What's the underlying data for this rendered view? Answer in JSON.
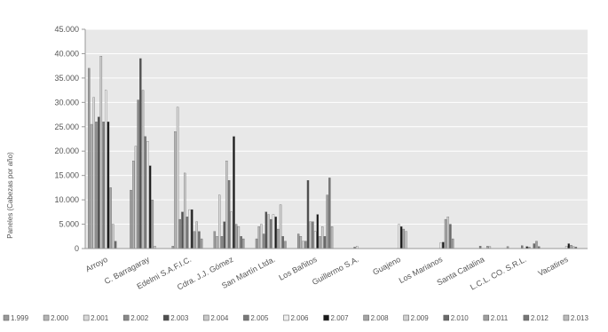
{
  "chart_data": {
    "type": "bar",
    "title": "",
    "ylabel": "Paneles (Cabezas por año)",
    "xlabel": "",
    "ylim": [
      0,
      45000
    ],
    "yticks": [
      "0",
      "5.000",
      "10.000",
      "15.000",
      "20.000",
      "25.000",
      "30.000",
      "35.000",
      "40.000",
      "45.000"
    ],
    "grid": true,
    "legend_position": "bottom",
    "categories": [
      "Arroyo",
      "C. Barragaray",
      "Edelmi S.A.F.I.C.",
      "Cdra. J.J. Gómez",
      "San Martín Ltda.",
      "Los Bañitos",
      "Guillermo S.A.",
      "Guajeno",
      "Los Marianos",
      "Santa Catalina",
      "L.C.L. CO. S.R.L.",
      "Vacatires"
    ],
    "series": [
      {
        "name": "1.999",
        "color": "#9a9a9a",
        "values": [
          37000,
          12000,
          500,
          3500,
          2000,
          3000,
          0,
          0,
          0,
          0,
          400,
          0
        ]
      },
      {
        "name": "2.000",
        "color": "#b5b5b5",
        "values": [
          25500,
          18000,
          24000,
          2500,
          4500,
          2500,
          0,
          0,
          0,
          0,
          0,
          0
        ]
      },
      {
        "name": "2.001",
        "color": "#d8d8d8",
        "values": [
          31000,
          21000,
          29000,
          11000,
          5000,
          1500,
          0,
          0,
          0,
          0,
          0,
          0
        ]
      },
      {
        "name": "2.002",
        "color": "#8a8a8a",
        "values": [
          26000,
          30500,
          6000,
          2500,
          3000,
          1500,
          0,
          0,
          0,
          0,
          0,
          0
        ]
      },
      {
        "name": "2.003",
        "color": "#505050",
        "values": [
          27000,
          39000,
          7500,
          5500,
          7500,
          14000,
          0,
          0,
          0,
          0,
          0,
          0
        ]
      },
      {
        "name": "2.004",
        "color": "#c8c8c8",
        "values": [
          39500,
          32500,
          15500,
          18000,
          7000,
          5500,
          0,
          0,
          0,
          0,
          0,
          0
        ]
      },
      {
        "name": "2.005",
        "color": "#7a7a7a",
        "values": [
          26000,
          23000,
          6500,
          14000,
          6000,
          5500,
          300,
          0,
          0,
          500,
          600,
          0
        ]
      },
      {
        "name": "2.006",
        "color": "#eeeeee",
        "values": [
          32500,
          22000,
          8000,
          7500,
          7000,
          3500,
          500,
          5000,
          1200,
          0,
          0,
          500
        ]
      },
      {
        "name": "2.007",
        "color": "#1a1a1a",
        "values": [
          26000,
          17000,
          8000,
          23000,
          6500,
          7000,
          0,
          4500,
          1300,
          0,
          400,
          1000
        ]
      },
      {
        "name": "2.008",
        "color": "#a5a5a5",
        "values": [
          12500,
          10000,
          3500,
          5000,
          4000,
          2500,
          0,
          4000,
          6000,
          500,
          300,
          700
        ]
      },
      {
        "name": "2.009",
        "color": "#cfcfcf",
        "values": [
          5000,
          500,
          5500,
          4500,
          9000,
          4500,
          0,
          3500,
          6500,
          400,
          0,
          400
        ]
      },
      {
        "name": "2.010",
        "color": "#6a6a6a",
        "values": [
          1500,
          0,
          3500,
          2500,
          2500,
          2500,
          0,
          0,
          5000,
          0,
          1000,
          300
        ]
      },
      {
        "name": "2.011",
        "color": "#9f9f9f",
        "values": [
          0,
          0,
          2000,
          2000,
          1500,
          11000,
          0,
          0,
          2000,
          0,
          1500,
          0
        ]
      },
      {
        "name": "2.012",
        "color": "#777777",
        "values": [
          0,
          0,
          0,
          0,
          0,
          14500,
          0,
          0,
          0,
          0,
          400,
          0
        ]
      },
      {
        "name": "2.013",
        "color": "#bbbbbb",
        "values": [
          0,
          0,
          0,
          0,
          0,
          4500,
          0,
          0,
          0,
          0,
          0,
          0
        ]
      }
    ]
  }
}
